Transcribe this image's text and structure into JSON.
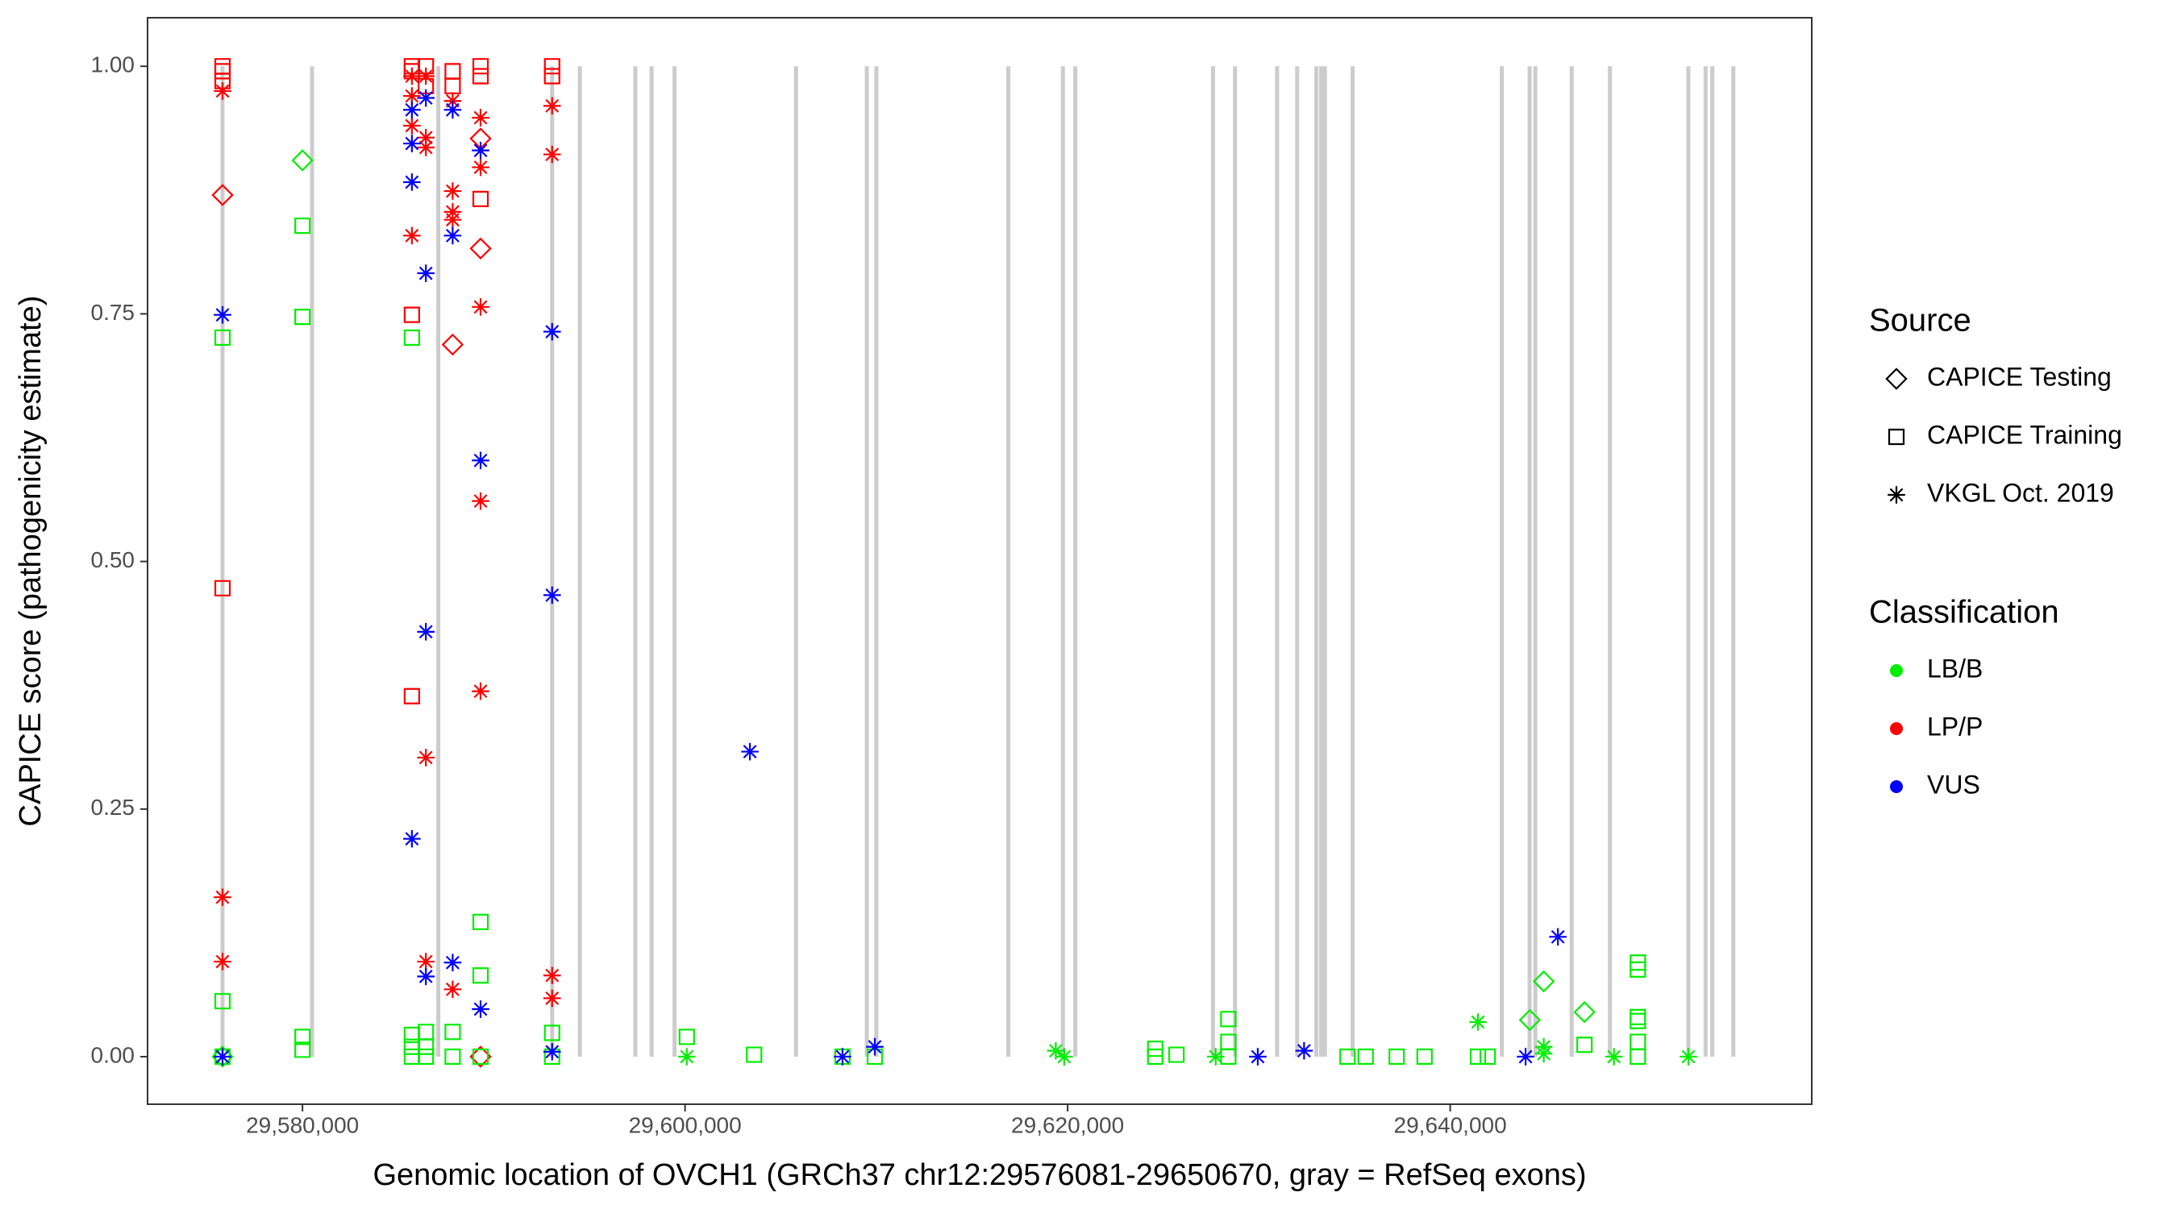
{
  "chart_data": {
    "type": "scatter",
    "x_label": "Genomic location of OVCH1 (GRCh37 chr12:29576081-29650670, gray = RefSeq exons)",
    "y_label": "CAPICE score (pathogenicity estimate)",
    "xlim": [
      29571900,
      29658900
    ],
    "ylim": [
      -0.048,
      1.049
    ],
    "xticks": [
      {
        "value": 29580000,
        "label": "29,580,000"
      },
      {
        "value": 29600000,
        "label": "29,600,000"
      },
      {
        "value": 29620000,
        "label": "29,620,000"
      },
      {
        "value": 29640000,
        "label": "29,640,000"
      }
    ],
    "yticks": [
      {
        "value": 0,
        "label": "0.00"
      },
      0.25,
      {
        "value": 0.5,
        "label": "0.50"
      },
      0.75,
      {
        "value": 1,
        "label": "1.00"
      }
    ],
    "exon_color": "#cccccc",
    "exons": [
      29575820,
      29580500,
      29587100,
      29593050,
      29594500,
      29597400,
      29598250,
      29599450,
      29605800,
      29609500,
      29610000,
      29616900,
      29619750,
      29620400,
      29627600,
      29628750,
      29630950,
      29632000,
      29633000,
      29633250,
      29633450,
      29634900,
      29642700,
      29644150,
      29644450,
      29646350,
      29648350,
      29652450,
      29653350,
      29653700,
      29654800
    ],
    "shape_legend": {
      "title": "Source",
      "entries": [
        {
          "name": "CAPICE Testing",
          "shape": "diamond"
        },
        {
          "name": "CAPICE Training",
          "shape": "square"
        },
        {
          "name": "VKGL Oct. 2019",
          "shape": "asterisk"
        }
      ]
    },
    "color_legend": {
      "title": "Classification",
      "entries": [
        {
          "name": "LB/B",
          "color": "#00ee00"
        },
        {
          "name": "LP/P",
          "color": "#ff0000"
        },
        {
          "name": "VUS",
          "color": "#0000ff"
        }
      ]
    },
    "series": [
      {
        "source": 0,
        "classification": 0,
        "x": [
          29580000,
          29644160,
          29644890,
          29647020,
          29575820
        ],
        "values": [
          0.905,
          0.037,
          0.076,
          0.045,
          0.0
        ]
      },
      {
        "source": 0,
        "classification": 1,
        "x": [
          29575820,
          29587850,
          29589310,
          29589310,
          29589310
        ],
        "values": [
          0.87,
          0.719,
          0.927,
          0.816,
          0.0
        ]
      },
      {
        "source": 1,
        "classification": 0,
        "x": [
          29575820,
          29575820,
          29575820,
          29580000,
          29580000,
          29580000,
          29580000,
          29585720,
          29585720,
          29585720,
          29585720,
          29586450,
          29586450,
          29586450,
          29587850,
          29587850,
          29589310,
          29589310,
          29589310,
          29593050,
          29593050,
          29600090,
          29603610,
          29608230,
          29609920,
          29624580,
          29624580,
          29625690,
          29628400,
          29628400,
          29628400,
          29634630,
          29635580,
          29637200,
          29638660,
          29641450,
          29641960,
          29647020,
          29649810,
          29649810,
          29649810,
          29649810,
          29649810,
          29649810
        ],
        "values": [
          0.726,
          0.056,
          0.0,
          0.839,
          0.747,
          0.02,
          0.007,
          0.726,
          0.022,
          0.01,
          0.0,
          0.025,
          0.01,
          0.0,
          0.025,
          0.0,
          0.136,
          0.082,
          0.0,
          0.024,
          0.0,
          0.02,
          0.002,
          0.0,
          0.0,
          0.008,
          0.0,
          0.002,
          0.038,
          0.015,
          0.0,
          0.0,
          0.0,
          0.0,
          0.0,
          0.0,
          0.0,
          0.012,
          0.095,
          0.088,
          0.04,
          0.036,
          0.015,
          0.0
        ]
      },
      {
        "source": 1,
        "classification": 1,
        "x": [
          29575820,
          29575820,
          29575820,
          29575820,
          29585720,
          29585720,
          29585720,
          29585720,
          29586450,
          29586450,
          29587850,
          29587850,
          29589310,
          29589310,
          29589310,
          29593050,
          29593050
        ],
        "values": [
          1.0,
          0.995,
          0.985,
          0.473,
          1.0,
          0.995,
          0.749,
          0.364,
          1.0,
          0.98,
          0.995,
          0.98,
          1.0,
          0.99,
          0.866,
          1.0,
          0.99
        ]
      },
      {
        "source": 2,
        "classification": 0,
        "x": [
          29600090,
          29619380,
          29619820,
          29627740,
          29641450,
          29644890,
          29644890,
          29648560,
          29652450
        ],
        "values": [
          0.0,
          0.006,
          0.0,
          0.0,
          0.035,
          0.01,
          0.003,
          0.0,
          0.0
        ]
      },
      {
        "source": 2,
        "classification": 1,
        "x": [
          29575820,
          29575820,
          29575820,
          29585720,
          29585720,
          29585720,
          29585720,
          29586450,
          29586450,
          29586450,
          29586450,
          29586450,
          29587850,
          29587850,
          29587850,
          29587850,
          29587850,
          29589310,
          29589310,
          29589310,
          29589310,
          29589310,
          29593050,
          29593050,
          29593050,
          29593050
        ],
        "values": [
          0.975,
          0.161,
          0.096,
          0.99,
          0.97,
          0.94,
          0.829,
          0.99,
          0.928,
          0.918,
          0.302,
          0.096,
          0.965,
          0.874,
          0.853,
          0.845,
          0.068,
          0.948,
          0.898,
          0.757,
          0.561,
          0.369,
          0.96,
          0.911,
          0.082,
          0.059
        ]
      },
      {
        "source": 2,
        "classification": 2,
        "x": [
          29575820,
          29575820,
          29585720,
          29585720,
          29585720,
          29585720,
          29586450,
          29586450,
          29586450,
          29586450,
          29587850,
          29587850,
          29587850,
          29589310,
          29589310,
          29589310,
          29593050,
          29593050,
          29593050,
          29603390,
          29608230,
          29609920,
          29629940,
          29632360,
          29643940,
          29645630
        ],
        "values": [
          0.749,
          0.0,
          0.956,
          0.922,
          0.883,
          0.22,
          0.968,
          0.791,
          0.429,
          0.081,
          0.956,
          0.829,
          0.095,
          0.915,
          0.602,
          0.048,
          0.732,
          0.466,
          0.005,
          0.308,
          0.0,
          0.01,
          0.0,
          0.006,
          0.0,
          0.121
        ]
      }
    ]
  }
}
